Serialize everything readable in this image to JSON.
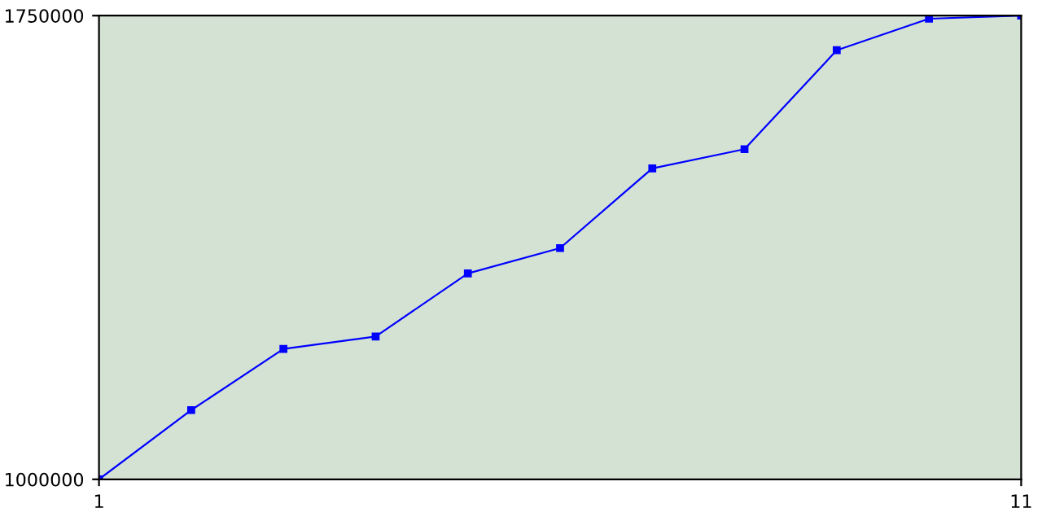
{
  "chart_data": {
    "type": "line",
    "x": [
      1,
      2,
      3,
      4,
      5,
      6,
      7,
      8,
      9,
      10,
      11
    ],
    "series": [
      {
        "color": "#0000ff",
        "values": [
          1000000,
          1112000,
          1211000,
          1231000,
          1333000,
          1374000,
          1503000,
          1534000,
          1694000,
          1745000,
          1750000
        ]
      }
    ],
    "xlim": [
      1,
      11
    ],
    "xticks": [
      1,
      11
    ],
    "ylim": [
      1000000,
      1750000
    ],
    "yticks": [
      1000000,
      1750000
    ],
    "marker": "square",
    "line_style": "solid",
    "grid": false
  }
}
